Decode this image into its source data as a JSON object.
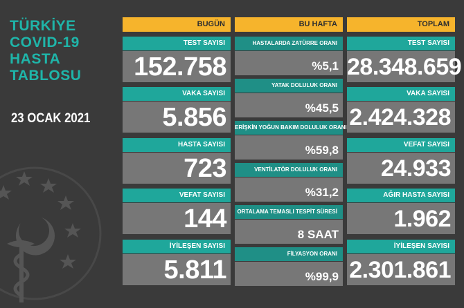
{
  "title_lines": [
    "TÜRKİYE",
    "COVID-19",
    "HASTA",
    "TABLOSU"
  ],
  "date": "23 OCAK 2021",
  "colors": {
    "background": "#3a3a3a",
    "header": "#f6b42c",
    "teal": "#1fa79b",
    "value_bg": "#777777",
    "title": "#1fb5a9"
  },
  "columns": {
    "today": {
      "header": "BUGÜN",
      "items": [
        {
          "label": "TEST SAYISI",
          "value": "152.758"
        },
        {
          "label": "VAKA SAYISI",
          "value": "5.856"
        },
        {
          "label": "HASTA SAYISI",
          "value": "723"
        },
        {
          "label": "VEFAT SAYISI",
          "value": "144"
        },
        {
          "label": "İYİLEŞEN SAYISI",
          "value": "5.811"
        }
      ]
    },
    "week": {
      "header": "BU HAFTA",
      "items": [
        {
          "label": "HASTALARDA ZATÜRRE ORANI",
          "value": "%5,1"
        },
        {
          "label": "YATAK DOLULUK ORANI",
          "value": "%45,5"
        },
        {
          "label": "ERİŞKİN YOĞUN BAKIM DOLULUK ORANI",
          "value": "%59,8"
        },
        {
          "label": "VENTİLATÖR DOLULUK ORANI",
          "value": "%31,2"
        },
        {
          "label": "ORTALAMA TEMASLI TESPİT SÜRESİ",
          "value": "8 SAAT"
        },
        {
          "label": "FİLYASYON ORANI",
          "value": "%99,9"
        }
      ]
    },
    "total": {
      "header": "TOPLAM",
      "items": [
        {
          "label": "TEST SAYISI",
          "value": "28.348.659"
        },
        {
          "label": "VAKA SAYISI",
          "value": "2.424.328"
        },
        {
          "label": "VEFAT SAYISI",
          "value": "24.933"
        },
        {
          "label": "AĞIR HASTA SAYISI",
          "value": "1.962"
        },
        {
          "label": "İYİLEŞEN SAYISI",
          "value": "2.301.861"
        }
      ]
    }
  }
}
